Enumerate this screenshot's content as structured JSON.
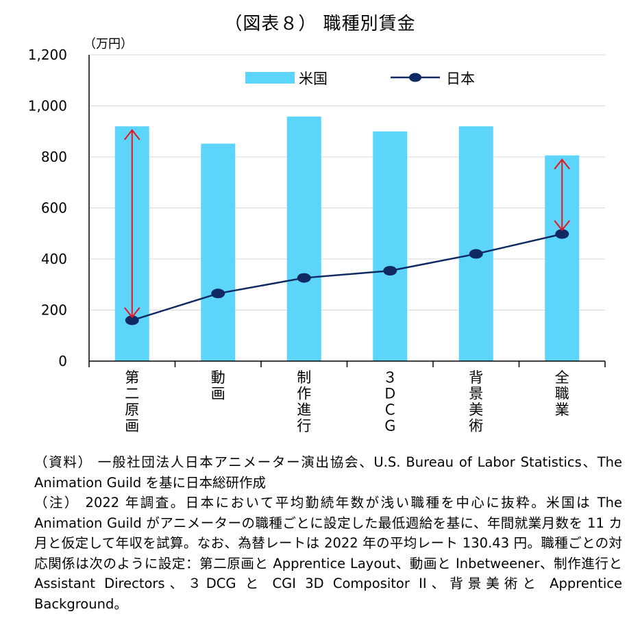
{
  "chart_data": {
    "type": "bar",
    "title": "（図表８） 職種別賃金",
    "ylabel": "（万円）",
    "xlabel": "",
    "ylim": [
      0,
      1200
    ],
    "yticks": [
      0,
      200,
      400,
      600,
      800,
      1000,
      1200
    ],
    "ytick_labels": [
      "0",
      "200",
      "400",
      "600",
      "800",
      "1,000",
      "1,200"
    ],
    "grid": true,
    "legend_position": "top-right",
    "categories": [
      "第二原画",
      "動画",
      "制作進行",
      "３ＤＣＧ",
      "背景美術",
      "全職業"
    ],
    "series": [
      {
        "name": "米国",
        "type": "bar",
        "color": "#5dd5fb",
        "values": [
          920,
          852,
          958,
          900,
          920,
          806
        ]
      },
      {
        "name": "日本",
        "type": "line",
        "color": "#0f2a63",
        "values": [
          160,
          265,
          326,
          354,
          420,
          498
        ]
      }
    ],
    "annotations": [
      {
        "type": "double-arrow",
        "category": "第二原画",
        "from": 172,
        "to": 905,
        "color": "#e8141a"
      },
      {
        "type": "double-arrow",
        "category": "全職業",
        "from": 513,
        "to": 790,
        "color": "#e8141a"
      }
    ]
  },
  "notes": [
    "（資料） 一般社団法人日本アニメーター演出協会、U.S. Bureau of Labor Statistics、The Animation Guild を基に日本総研作成",
    "（注） 2022 年調査。日本において平均勤続年数が浅い職種を中心に抜粋。米国は The Animation Guild がアニメーターの職種ごとに設定した最低週給を基に、年間就業月数を 11 カ月と仮定して年収を試算。なお、為替レートは 2022 年の平均レート 130.43 円。職種ごとの対応関係は次のように設定：第二原画と Apprentice Layout、動画と Inbetweener、制作進行と Assistant Directors、３DCG と CGI 3D Compositor II、背景美術と Apprentice Background。"
  ]
}
